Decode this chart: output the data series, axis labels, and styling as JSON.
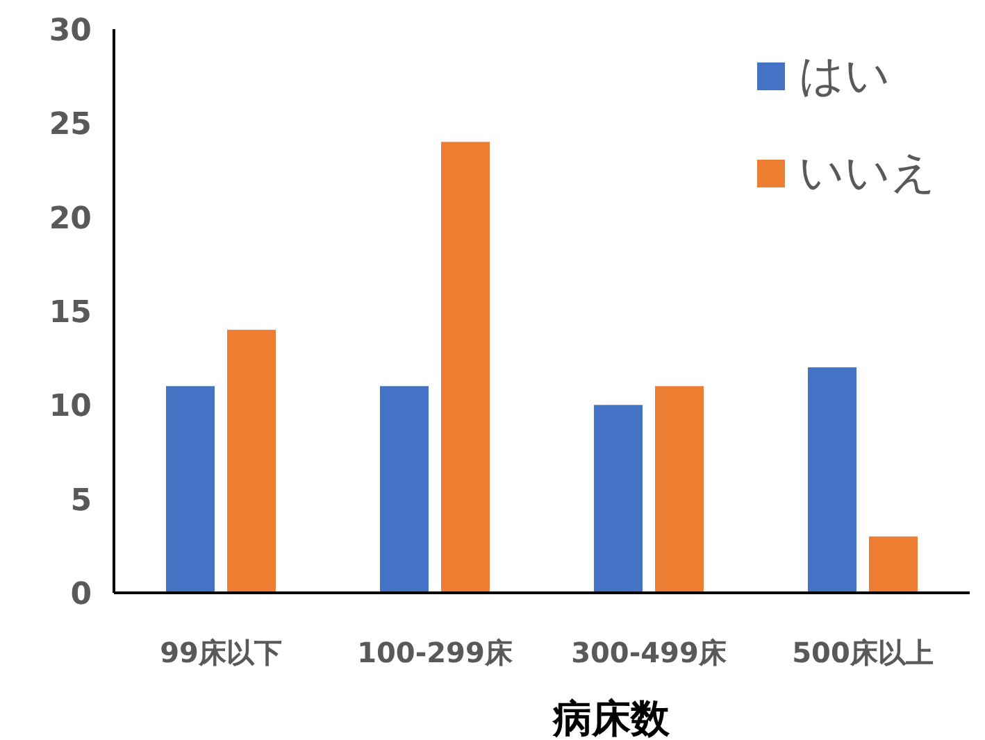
{
  "chart_data": {
    "type": "bar",
    "xlabel": "病床数",
    "categories": [
      "99床以下",
      "100-299床",
      "300-499床",
      "500床以上"
    ],
    "series": [
      {
        "name": "はい",
        "color": "#4472c4",
        "values": [
          11,
          11,
          10,
          12
        ]
      },
      {
        "name": "いいえ",
        "color": "#ed7d31",
        "values": [
          14,
          24,
          11,
          3
        ]
      }
    ],
    "ylim": [
      0,
      30
    ],
    "yticks": [
      0,
      5,
      10,
      15,
      20,
      25,
      30
    ],
    "legend": "top right"
  }
}
